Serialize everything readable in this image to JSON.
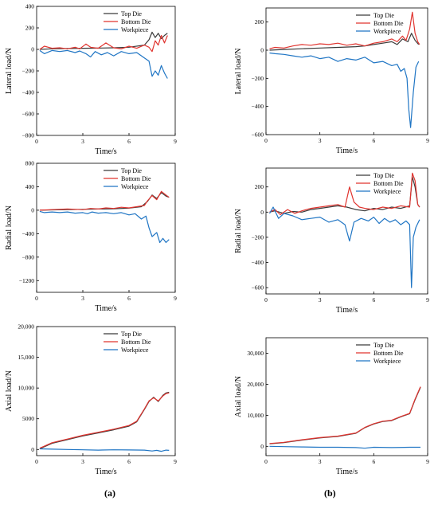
{
  "captions": [
    "(a)",
    "(b)"
  ],
  "colors": {
    "top": "#3a3a3a",
    "bottom": "#e0342f",
    "work": "#1f75c4"
  },
  "chart_data": [
    {
      "id": "a-lateral",
      "type": "line",
      "xlabel": "Time/s",
      "ylabel": "Lateral load/N",
      "xlim": [
        0,
        9
      ],
      "ylim": [
        -800,
        400
      ],
      "xticks": [
        "0",
        "3",
        "6",
        "9"
      ],
      "yticks": [
        "400",
        "200",
        "0",
        "−200",
        "−400",
        "−600",
        "−800"
      ],
      "ytick_values": [
        400,
        200,
        0,
        -200,
        -400,
        -600,
        -800
      ],
      "legend": "top-right",
      "series": [
        {
          "name": "Top Die",
          "x": [
            0.2,
            1,
            2,
            3,
            4,
            5,
            6,
            7,
            7.3,
            7.5,
            7.7,
            7.9,
            8.1,
            8.3,
            8.5
          ],
          "y": [
            0,
            5,
            8,
            10,
            12,
            15,
            20,
            40,
            90,
            160,
            110,
            150,
            100,
            130,
            150
          ]
        },
        {
          "name": "Bottom Die",
          "x": [
            0.2,
            0.5,
            1,
            1.5,
            2,
            2.5,
            2.8,
            3.2,
            3.5,
            4,
            4.5,
            5,
            5.5,
            6,
            6.5,
            7,
            7.3,
            7.5,
            7.7,
            7.9,
            8.1,
            8.3,
            8.5
          ],
          "y": [
            0,
            30,
            10,
            15,
            5,
            20,
            5,
            50,
            20,
            10,
            60,
            15,
            5,
            30,
            10,
            40,
            20,
            -20,
            80,
            40,
            130,
            60,
            130
          ]
        },
        {
          "name": "Workpiece",
          "x": [
            0.2,
            0.5,
            1,
            1.5,
            2,
            2.5,
            2.8,
            3.2,
            3.5,
            3.8,
            4.2,
            4.6,
            5,
            5.5,
            6,
            6.5,
            7,
            7.3,
            7.5,
            7.7,
            7.9,
            8.1,
            8.3,
            8.5
          ],
          "y": [
            -10,
            -40,
            -10,
            -20,
            -10,
            -30,
            -15,
            -40,
            -70,
            -20,
            -50,
            -30,
            -60,
            -20,
            -40,
            -30,
            -80,
            -110,
            -250,
            -200,
            -240,
            -150,
            -220,
            -270
          ]
        }
      ]
    },
    {
      "id": "b-lateral",
      "type": "line",
      "xlabel": "Time/s",
      "ylabel": "Lateral load/N",
      "xlim": [
        0,
        9
      ],
      "ylim": [
        -600,
        300
      ],
      "xticks": [
        "0",
        "3",
        "6",
        "9"
      ],
      "yticks": [
        "200",
        "0",
        "−200",
        "−400",
        "−600"
      ],
      "ytick_values": [
        200,
        0,
        -200,
        -400,
        -600
      ],
      "legend": "top-right",
      "series": [
        {
          "name": "Top Die",
          "x": [
            0.2,
            1,
            2,
            3,
            4,
            5,
            5.5,
            6,
            6.5,
            7,
            7.3,
            7.6,
            7.9,
            8.1,
            8.3,
            8.5
          ],
          "y": [
            0,
            5,
            10,
            15,
            20,
            25,
            30,
            40,
            50,
            60,
            40,
            80,
            60,
            120,
            70,
            40
          ]
        },
        {
          "name": "Bottom Die",
          "x": [
            0.2,
            0.5,
            1,
            1.5,
            2,
            2.5,
            3,
            3.5,
            4,
            4.5,
            5,
            5.5,
            6,
            6.5,
            7,
            7.3,
            7.6,
            7.8,
            8,
            8.15,
            8.3,
            8.45,
            8.55
          ],
          "y": [
            10,
            20,
            15,
            30,
            40,
            35,
            45,
            40,
            50,
            35,
            45,
            30,
            50,
            60,
            80,
            60,
            100,
            70,
            150,
            270,
            120,
            60,
            40
          ]
        },
        {
          "name": "Workpiece",
          "x": [
            0.2,
            0.5,
            1,
            1.5,
            2,
            2.5,
            3,
            3.5,
            4,
            4.5,
            5,
            5.5,
            6,
            6.5,
            7,
            7.3,
            7.5,
            7.7,
            7.85,
            7.95,
            8.05,
            8.2,
            8.35,
            8.5
          ],
          "y": [
            -20,
            -25,
            -30,
            -40,
            -50,
            -40,
            -60,
            -50,
            -80,
            -60,
            -70,
            -50,
            -90,
            -80,
            -110,
            -100,
            -150,
            -130,
            -200,
            -420,
            -550,
            -300,
            -120,
            -80
          ]
        }
      ]
    },
    {
      "id": "a-radial",
      "type": "line",
      "xlabel": "Time/s",
      "ylabel": "Radial load/N",
      "xlim": [
        0,
        9
      ],
      "ylim": [
        -1400,
        800
      ],
      "xticks": [
        "0",
        "3",
        "6",
        "9"
      ],
      "yticks": [
        "800",
        "400",
        "0",
        "−400",
        "−800",
        "−1200"
      ],
      "ytick_values": [
        800,
        400,
        0,
        -400,
        -800,
        -1200
      ],
      "legend": "top-right",
      "series": [
        {
          "name": "Top Die",
          "x": [
            0.2,
            1,
            2,
            3,
            4,
            5,
            6,
            6.8,
            7.2,
            7.5,
            7.8,
            8.1,
            8.4,
            8.6
          ],
          "y": [
            0,
            5,
            10,
            15,
            20,
            25,
            35,
            60,
            150,
            260,
            200,
            300,
            240,
            220
          ]
        },
        {
          "name": "Bottom Die",
          "x": [
            0.2,
            1,
            2,
            3,
            3.5,
            4,
            4.5,
            5,
            5.5,
            6,
            6.5,
            7,
            7.2,
            7.5,
            7.8,
            8.1,
            8.4,
            8.6
          ],
          "y": [
            0,
            10,
            20,
            10,
            30,
            20,
            40,
            30,
            50,
            40,
            60,
            80,
            160,
            250,
            180,
            320,
            260,
            220
          ]
        },
        {
          "name": "Workpiece",
          "x": [
            0.2,
            0.5,
            1,
            1.5,
            2,
            2.5,
            3,
            3.3,
            3.6,
            4,
            4.5,
            5,
            5.5,
            6,
            6.4,
            6.8,
            7.1,
            7.3,
            7.5,
            7.8,
            8,
            8.2,
            8.4,
            8.6
          ],
          "y": [
            -20,
            -40,
            -30,
            -40,
            -30,
            -50,
            -40,
            -60,
            -30,
            -50,
            -40,
            -60,
            -40,
            -80,
            -60,
            -150,
            -100,
            -300,
            -450,
            -380,
            -550,
            -480,
            -550,
            -500
          ]
        }
      ]
    },
    {
      "id": "b-radial",
      "type": "line",
      "xlabel": "Time/s",
      "ylabel": "Radial load/N",
      "xlim": [
        0,
        9
      ],
      "ylim": [
        -650,
        350
      ],
      "xticks": [
        "0",
        "3",
        "6",
        "9"
      ],
      "yticks": [
        "200",
        "0",
        "−200",
        "−400",
        "−600"
      ],
      "ytick_values": [
        200,
        0,
        -200,
        -400,
        -600
      ],
      "legend": "top-right",
      "series": [
        {
          "name": "Top Die",
          "x": [
            0.2,
            0.5,
            1,
            1.5,
            2,
            2.5,
            3,
            3.5,
            4,
            4.5,
            5,
            5.5,
            6,
            6.5,
            7,
            7.5,
            8,
            8.15,
            8.3,
            8.45,
            8.55
          ],
          "y": [
            0,
            10,
            -10,
            5,
            0,
            20,
            30,
            40,
            50,
            40,
            20,
            10,
            30,
            20,
            40,
            30,
            50,
            280,
            200,
            60,
            40
          ]
        },
        {
          "name": "Bottom Die",
          "x": [
            0.2,
            0.5,
            0.8,
            1.2,
            1.6,
            2,
            2.5,
            3,
            3.5,
            4,
            4.4,
            4.65,
            4.9,
            5.2,
            5.5,
            6,
            6.5,
            7,
            7.5,
            8,
            8.15,
            8.3,
            8.45,
            8.55
          ],
          "y": [
            0,
            20,
            -20,
            20,
            -10,
            10,
            30,
            40,
            50,
            60,
            40,
            200,
            80,
            40,
            30,
            20,
            40,
            30,
            50,
            40,
            310,
            250,
            60,
            40
          ]
        },
        {
          "name": "Workpiece",
          "x": [
            0.2,
            0.4,
            0.7,
            1,
            1.5,
            2,
            2.5,
            3,
            3.5,
            4,
            4.4,
            4.65,
            4.9,
            5.3,
            5.7,
            6,
            6.3,
            6.6,
            6.9,
            7.2,
            7.5,
            7.8,
            8,
            8.1,
            8.2,
            8.35,
            8.55
          ],
          "y": [
            -10,
            40,
            -50,
            -10,
            -30,
            -60,
            -50,
            -40,
            -80,
            -60,
            -100,
            -230,
            -80,
            -50,
            -70,
            -40,
            -90,
            -50,
            -80,
            -60,
            -100,
            -70,
            -100,
            -600,
            -200,
            -120,
            -60
          ]
        }
      ]
    },
    {
      "id": "a-axial",
      "type": "line",
      "xlabel": "Time/s",
      "ylabel": "Axial load/N",
      "xlim": [
        0,
        9
      ],
      "ylim": [
        -1000,
        20000
      ],
      "xticks": [
        "0",
        "3",
        "6",
        "9"
      ],
      "yticks": [
        "20,000",
        "15,000",
        "10,000",
        "5000",
        "0"
      ],
      "ytick_values": [
        20000,
        15000,
        10000,
        5000,
        0
      ],
      "legend": "top-right",
      "series": [
        {
          "name": "Top Die",
          "x": [
            0.2,
            1,
            2,
            3,
            4,
            5,
            6,
            6.5,
            7,
            7.3,
            7.6,
            7.9,
            8.2,
            8.4,
            8.6
          ],
          "y": [
            100,
            1000,
            1600,
            2200,
            2700,
            3200,
            3800,
            4500,
            6500,
            7800,
            8500,
            7800,
            8800,
            9200,
            9300
          ]
        },
        {
          "name": "Bottom Die",
          "x": [
            0.2,
            1,
            2,
            3,
            4,
            5,
            6,
            6.5,
            7,
            7.3,
            7.6,
            7.9,
            8.2,
            8.4,
            8.6
          ],
          "y": [
            200,
            1100,
            1700,
            2300,
            2800,
            3300,
            3900,
            4600,
            6600,
            7900,
            8400,
            7900,
            8700,
            9100,
            9200
          ]
        },
        {
          "name": "Workpiece",
          "x": [
            0.2,
            1,
            2,
            3,
            4,
            5,
            6,
            7,
            7.5,
            7.8,
            8.1,
            8.4,
            8.6
          ],
          "y": [
            100,
            50,
            0,
            -50,
            -100,
            -50,
            -80,
            -100,
            -250,
            -150,
            -300,
            -100,
            -150
          ]
        }
      ]
    },
    {
      "id": "b-axial",
      "type": "line",
      "xlabel": "Time/s",
      "ylabel": "Axial load/N",
      "xlim": [
        0,
        9
      ],
      "ylim": [
        -3000,
        35000
      ],
      "xticks": [
        "0",
        "3",
        "6",
        "9"
      ],
      "yticks": [
        "30,000",
        "20,000",
        "10,000",
        "0"
      ],
      "ytick_values": [
        30000,
        20000,
        10000,
        0
      ],
      "legend": "top-right",
      "series": [
        {
          "name": "Top Die",
          "x": [
            0.2,
            1,
            2,
            3,
            4,
            5,
            5.5,
            6,
            6.5,
            7,
            7.5,
            8,
            8.3,
            8.6
          ],
          "y": [
            800,
            1200,
            2000,
            2700,
            3200,
            4200,
            6000,
            7200,
            8000,
            8300,
            9500,
            10500,
            15000,
            19000
          ]
        },
        {
          "name": "Bottom Die",
          "x": [
            0.2,
            1,
            2,
            3,
            4,
            5,
            5.5,
            6,
            6.5,
            7,
            7.5,
            8,
            8.3,
            8.6
          ],
          "y": [
            900,
            1300,
            2100,
            2800,
            3300,
            4300,
            6100,
            7300,
            8100,
            8400,
            9600,
            10600,
            15200,
            19200
          ]
        },
        {
          "name": "Workpiece",
          "x": [
            0.2,
            1,
            2,
            3,
            4,
            5,
            5.5,
            6,
            7,
            8,
            8.6
          ],
          "y": [
            0,
            -100,
            -200,
            -300,
            -300,
            -400,
            -600,
            -300,
            -400,
            -300,
            -300
          ]
        }
      ]
    }
  ]
}
